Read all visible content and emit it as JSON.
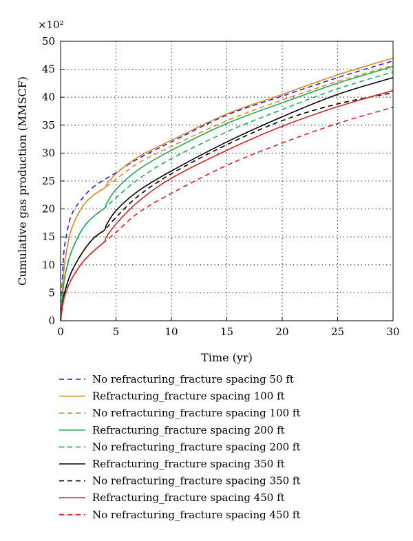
{
  "chart_data": {
    "type": "line",
    "title": "",
    "xlabel": "Time (yr)",
    "ylabel": "Cumulative gas production (MMSCF)",
    "y_multiplier": "×10²",
    "xlim": [
      0,
      30
    ],
    "ylim": [
      0,
      50
    ],
    "xticks": [
      0,
      5,
      10,
      15,
      20,
      25,
      30
    ],
    "yticks": [
      0,
      5,
      10,
      15,
      20,
      25,
      30,
      35,
      40,
      45,
      50
    ],
    "grid": "dotted",
    "legend_position": "below",
    "series": [
      {
        "name": "No refracturing_fracture spacing 50 ft",
        "color": "#2020e0",
        "dash": true,
        "x": [
          0,
          0.25,
          0.5,
          1,
          2,
          3,
          4,
          5,
          7,
          10,
          15,
          20,
          25,
          30
        ],
        "y": [
          0,
          11,
          15,
          19,
          22,
          24,
          25.3,
          26.5,
          29,
          32,
          36.8,
          40.2,
          43.5,
          46.5
        ]
      },
      {
        "name": "Refracturing_fracture spacing 100 ft",
        "color": "#e08a20",
        "dash": false,
        "x": [
          0,
          0.25,
          0.5,
          1,
          2,
          3,
          4,
          4.1,
          5,
          7,
          10,
          15,
          20,
          25,
          30
        ],
        "y": [
          0,
          8,
          12,
          16.5,
          20.5,
          22.5,
          23.8,
          24.2,
          26.3,
          29.3,
          32.3,
          37,
          40.5,
          44,
          47
        ]
      },
      {
        "name": "No refracturing_fracture spacing 100 ft",
        "color": "#e08a20",
        "dash": true,
        "x": [
          0,
          0.25,
          0.5,
          1,
          2,
          3,
          4,
          5,
          7,
          10,
          15,
          20,
          25,
          30
        ],
        "y": [
          0,
          8,
          12,
          16.5,
          20.5,
          22.5,
          23.8,
          25.3,
          28.2,
          31.2,
          35.8,
          39.5,
          42.8,
          45.7
        ]
      },
      {
        "name": "Refracturing_fracture spacing 200 ft",
        "color": "#1aaf50",
        "dash": false,
        "x": [
          0,
          0.25,
          0.5,
          1,
          2,
          3,
          4,
          4.1,
          5,
          7,
          10,
          15,
          20,
          25,
          30
        ],
        "y": [
          0,
          6,
          9,
          12.5,
          16.5,
          18.7,
          20.2,
          20.8,
          23.5,
          27,
          30.5,
          35.3,
          39,
          42.5,
          45.5
        ]
      },
      {
        "name": "No refracturing_fracture spacing 200 ft",
        "color": "#1aaf50",
        "dash": true,
        "x": [
          0,
          0.25,
          0.5,
          1,
          2,
          3,
          4,
          5,
          7,
          10,
          15,
          20,
          25,
          30
        ],
        "y": [
          0,
          6,
          9,
          12.5,
          16.5,
          18.7,
          20.2,
          22,
          25.3,
          29,
          33.8,
          37.8,
          41.5,
          44.5
        ]
      },
      {
        "name": "Refracturing_fracture spacing 350 ft",
        "color": "#000000",
        "dash": false,
        "x": [
          0,
          0.25,
          0.5,
          1,
          2,
          3,
          4,
          4.1,
          5,
          7,
          10,
          15,
          20,
          25,
          30
        ],
        "y": [
          0,
          4,
          6,
          8.8,
          12.3,
          14.8,
          16.3,
          17,
          19.7,
          23.2,
          26.8,
          32,
          36.5,
          40.5,
          43.5
        ]
      },
      {
        "name": "No refracturing_fracture spacing 350 ft",
        "color": "#000000",
        "dash": true,
        "x": [
          0,
          0.25,
          0.5,
          1,
          2,
          3,
          4,
          5,
          7,
          10,
          15,
          20,
          25,
          30
        ],
        "y": [
          0,
          4,
          6,
          8.8,
          12.3,
          14.8,
          16.3,
          18.5,
          22.3,
          26.3,
          31.5,
          35.8,
          38.8,
          40.8
        ]
      },
      {
        "name": "Refracturing_fracture spacing 450 ft",
        "color": "#e02020",
        "dash": false,
        "x": [
          0,
          0.25,
          0.5,
          1,
          2,
          3,
          4,
          4.1,
          5,
          7,
          10,
          15,
          20,
          25,
          30
        ],
        "y": [
          0,
          3.5,
          5.2,
          7.5,
          10.5,
          12.5,
          14.2,
          14.9,
          17.3,
          21.3,
          25.5,
          30.5,
          34.8,
          38.3,
          41.2
        ]
      },
      {
        "name": "No refracturing_fracture spacing 450 ft",
        "color": "#e02020",
        "dash": true,
        "x": [
          0,
          0.25,
          0.5,
          1,
          2,
          3,
          4,
          5,
          7,
          10,
          15,
          20,
          25,
          30
        ],
        "y": [
          0,
          3.5,
          5.2,
          7.5,
          10.5,
          12.5,
          14.2,
          15.8,
          19.3,
          22.8,
          27.8,
          31.8,
          35.3,
          38.2
        ]
      }
    ]
  }
}
